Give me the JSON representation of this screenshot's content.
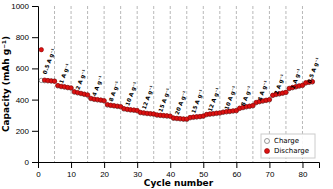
{
  "chart_data": {
    "type": "scatter",
    "x_label": "Cycle number",
    "y_label": "Capacity (mAh g⁻¹)",
    "xlim": [
      0,
      85
    ],
    "ylim": [
      0,
      1000
    ],
    "xticks": [
      0,
      10,
      20,
      30,
      40,
      50,
      60,
      70,
      80
    ],
    "yticks": [
      0,
      200,
      400,
      600,
      800,
      1000
    ],
    "legend": "lower right",
    "x": [
      1,
      2,
      3,
      4,
      5,
      6,
      7,
      8,
      9,
      10,
      11,
      12,
      13,
      14,
      15,
      16,
      17,
      18,
      19,
      20,
      21,
      22,
      23,
      24,
      25,
      26,
      27,
      28,
      29,
      30,
      31,
      32,
      33,
      34,
      35,
      36,
      37,
      38,
      39,
      40,
      41,
      42,
      43,
      44,
      45,
      46,
      47,
      48,
      49,
      50,
      51,
      52,
      53,
      54,
      55,
      56,
      57,
      58,
      59,
      60,
      61,
      62,
      63,
      64,
      65,
      66,
      67,
      68,
      69,
      70,
      71,
      72,
      73,
      74,
      75,
      76,
      77,
      78,
      79,
      80,
      81,
      82,
      83
    ],
    "series": [
      {
        "name": "Charge",
        "color": "#ffffff",
        "values": [
          523,
          521,
          520,
          519,
          518,
          488,
          483,
          480,
          476,
          473,
          448,
          443,
          438,
          433,
          428,
          406,
          401,
          398,
          395,
          391,
          365,
          362,
          359,
          356,
          353,
          340,
          336,
          333,
          331,
          328,
          316,
          313,
          310,
          308,
          306,
          300,
          298,
          296,
          294,
          292,
          280,
          278,
          276,
          274,
          273,
          283,
          286,
          288,
          290,
          293,
          303,
          306,
          308,
          311,
          313,
          318,
          321,
          323,
          326,
          328,
          343,
          348,
          353,
          356,
          360,
          380,
          386,
          390,
          394,
          398,
          426,
          432,
          436,
          440,
          445,
          470,
          476,
          481,
          486,
          490,
          506,
          510,
          513
        ]
      },
      {
        "name": "Discharge",
        "color": "#dd1111",
        "values": [
          720,
          525,
          522,
          520,
          518,
          490,
          485,
          482,
          478,
          475,
          450,
          445,
          440,
          435,
          430,
          408,
          403,
          400,
          397,
          393,
          368,
          364,
          361,
          358,
          355,
          342,
          338,
          335,
          333,
          330,
          318,
          315,
          312,
          310,
          308,
          302,
          300,
          298,
          296,
          294,
          282,
          280,
          278,
          276,
          275,
          285,
          288,
          290,
          292,
          295,
          305,
          308,
          310,
          313,
          315,
          320,
          323,
          325,
          328,
          330,
          345,
          350,
          355,
          358,
          362,
          382,
          388,
          392,
          396,
          400,
          428,
          434,
          438,
          442,
          447,
          472,
          478,
          483,
          488,
          492,
          508,
          512,
          515
        ]
      }
    ],
    "vlines": [
      5,
      10,
      15,
      20,
      25,
      30,
      35,
      40,
      45,
      50,
      55,
      60,
      65,
      70,
      75,
      80
    ],
    "annotations": [
      {
        "text": "0.5 A g⁻¹",
        "x": 2.5,
        "y": 560
      },
      {
        "text": "1 A g⁻¹",
        "x": 7.5,
        "y": 500
      },
      {
        "text": "2 A g⁻¹",
        "x": 12.5,
        "y": 460
      },
      {
        "text": "4 A g⁻¹",
        "x": 17.5,
        "y": 420
      },
      {
        "text": "8 A g⁻¹",
        "x": 22.5,
        "y": 385
      },
      {
        "text": "10 A g⁻¹",
        "x": 27.5,
        "y": 358
      },
      {
        "text": "12 A g⁻¹",
        "x": 32.5,
        "y": 335
      },
      {
        "text": "15 A g⁻¹",
        "x": 37.5,
        "y": 318
      },
      {
        "text": "20 A g⁻¹",
        "x": 42.5,
        "y": 300
      },
      {
        "text": "15 A g⁻¹",
        "x": 47.5,
        "y": 310
      },
      {
        "text": "12 A g⁻¹",
        "x": 52.5,
        "y": 320
      },
      {
        "text": "10 A g⁻¹",
        "x": 57.5,
        "y": 332
      },
      {
        "text": "8 A g⁻¹",
        "x": 62.5,
        "y": 355
      },
      {
        "text": "4 A g⁻¹",
        "x": 67.5,
        "y": 390
      },
      {
        "text": "2 A g⁻¹",
        "x": 72.5,
        "y": 430
      },
      {
        "text": "1 A g⁻¹",
        "x": 77.5,
        "y": 465
      },
      {
        "text": "0.5 A g⁻¹",
        "x": 82.5,
        "y": 502
      }
    ]
  }
}
